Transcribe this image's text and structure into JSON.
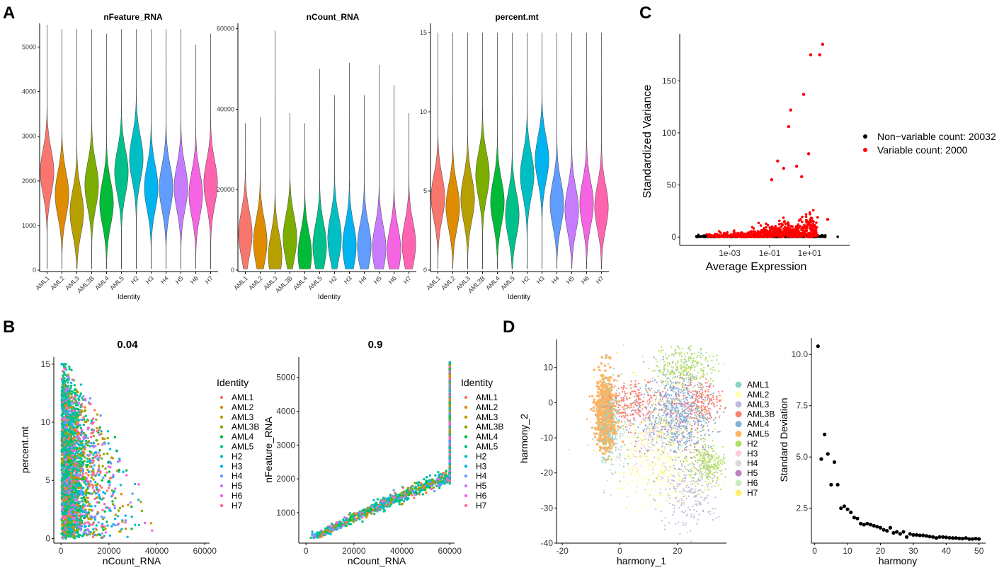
{
  "panels": {
    "A": "A",
    "B": "B",
    "C": "C",
    "D": "D"
  },
  "chart_data": [
    {
      "id": "violin-nFeature",
      "type": "violin",
      "title": "nFeature_RNA",
      "xlabel": "Identity",
      "ylabel": "",
      "categories": [
        "AML1",
        "AML2",
        "AML3",
        "AML3B",
        "AML4",
        "AML5",
        "H2",
        "H3",
        "H4",
        "H5",
        "H6",
        "H7"
      ],
      "colors": [
        "#F8766D",
        "#DE8C00",
        "#B79F00",
        "#7CAE00",
        "#00BA38",
        "#00C08B",
        "#00BFC4",
        "#00B4F0",
        "#619CFF",
        "#C77CFF",
        "#F564E3",
        "#FF64B0"
      ],
      "medians": [
        2200,
        1700,
        1300,
        1900,
        1500,
        2200,
        2500,
        1850,
        1850,
        1850,
        1700,
        1950
      ],
      "max": [
        5500,
        5400,
        5400,
        5400,
        5300,
        5400,
        5400,
        5400,
        5400,
        5400,
        5050,
        5300
      ],
      "ylim": [
        0,
        5500
      ],
      "yticks": [
        0,
        1000,
        2000,
        3000,
        4000,
        5000
      ]
    },
    {
      "id": "violin-nCount",
      "type": "violin",
      "title": "nCount_RNA",
      "xlabel": "Identity",
      "ylabel": "",
      "categories": [
        "AML1",
        "AML2",
        "AML3",
        "AML3B",
        "AML4",
        "AML5",
        "H2",
        "H3",
        "H4",
        "H5",
        "H6",
        "H7"
      ],
      "colors": [
        "#F8766D",
        "#DE8C00",
        "#B79F00",
        "#7CAE00",
        "#00BA38",
        "#00C08B",
        "#00BFC4",
        "#00B4F0",
        "#619CFF",
        "#C77CFF",
        "#F564E3",
        "#FF64B0"
      ],
      "medians": [
        9000,
        7000,
        3500,
        8000,
        4000,
        6000,
        8000,
        6000,
        6000,
        5500,
        5000,
        6500
      ],
      "max": [
        36500,
        38000,
        59500,
        39000,
        36500,
        50000,
        43500,
        51500,
        43500,
        51000,
        46000,
        39000
      ],
      "ylim": [
        0,
        61000
      ],
      "yticks": [
        0,
        20000,
        40000,
        60000
      ]
    },
    {
      "id": "violin-percentmt",
      "type": "violin",
      "title": "percent.mt",
      "xlabel": "Identity",
      "ylabel": "",
      "categories": [
        "AML1",
        "AML2",
        "AML3",
        "AML3B",
        "AML4",
        "AML5",
        "H2",
        "H3",
        "H4",
        "H5",
        "H6",
        "H7"
      ],
      "colors": [
        "#F8766D",
        "#DE8C00",
        "#B79F00",
        "#7CAE00",
        "#00BA38",
        "#00C08B",
        "#00BFC4",
        "#00B4F0",
        "#619CFF",
        "#C77CFF",
        "#F564E3",
        "#FF64B0"
      ],
      "medians": [
        4.6,
        4.0,
        4.5,
        6.0,
        4.3,
        3.5,
        6.0,
        7.0,
        4.2,
        3.8,
        4.2,
        4.0
      ],
      "max": [
        15,
        15,
        15,
        15,
        15,
        15,
        15,
        15,
        15,
        15,
        15,
        15
      ],
      "ylim": [
        0,
        15.5
      ],
      "yticks": [
        0,
        5,
        10,
        15
      ]
    },
    {
      "id": "scatter-B1",
      "type": "scatter",
      "title": "0.04",
      "xlabel": "nCount_RNA",
      "ylabel": "percent.mt",
      "xlim": [
        -3000,
        62000
      ],
      "ylim": [
        -0.4,
        15.6
      ],
      "xticks": [
        0,
        20000,
        40000,
        60000
      ],
      "yticks": [
        0,
        5,
        10,
        15
      ],
      "legend_title": "Identity",
      "legend": [
        "AML1",
        "AML2",
        "AML3",
        "AML3B",
        "AML4",
        "AML5",
        "H2",
        "H3",
        "H4",
        "H5",
        "H6",
        "H7"
      ],
      "colors": [
        "#F8766D",
        "#DE8C00",
        "#B79F00",
        "#7CAE00",
        "#00BA38",
        "#00C08B",
        "#00BFC4",
        "#00B4F0",
        "#619CFF",
        "#C77CFF",
        "#F564E3",
        "#FF64B0"
      ]
    },
    {
      "id": "scatter-B2",
      "type": "scatter",
      "title": "0.9",
      "xlabel": "nCount_RNA",
      "ylabel": "nFeature_RNA",
      "xlim": [
        -3000,
        62000
      ],
      "ylim": [
        100,
        5600
      ],
      "xticks": [
        0,
        20000,
        40000,
        60000
      ],
      "yticks": [
        1000,
        2000,
        3000,
        4000,
        5000
      ],
      "legend_title": "Identity",
      "legend": [
        "AML1",
        "AML2",
        "AML3",
        "AML3B",
        "AML4",
        "AML5",
        "H2",
        "H3",
        "H4",
        "H5",
        "H6",
        "H7"
      ],
      "colors": [
        "#F8766D",
        "#DE8C00",
        "#B79F00",
        "#7CAE00",
        "#00BA38",
        "#00C08B",
        "#00BFC4",
        "#00B4F0",
        "#619CFF",
        "#C77CFF",
        "#F564E3",
        "#FF64B0"
      ]
    },
    {
      "id": "scatter-C",
      "type": "scatter",
      "title": "",
      "xlabel": "Average Expression",
      "ylabel": "Standardized Variance",
      "xscale": "log10",
      "xlim": [
        -5.5,
        3
      ],
      "ylim": [
        -8,
        195
      ],
      "xticks": [
        -3,
        -1,
        1
      ],
      "xticklabels": [
        "1e-03",
        "1e-01",
        "1e+01"
      ],
      "yticks": [
        0,
        50,
        100,
        150
      ],
      "legend": [
        "Non−variable count: 20032",
        "Variable count: 2000"
      ],
      "colors": [
        "#000000",
        "#FF0000"
      ],
      "highlight_points": [
        {
          "log10x": 1.05,
          "y": 175
        },
        {
          "log10x": 1.5,
          "y": 175
        },
        {
          "log10x": 1.65,
          "y": 185
        },
        {
          "log10x": 0.7,
          "y": 137
        },
        {
          "log10x": 0.05,
          "y": 122
        },
        {
          "log10x": -0.05,
          "y": 106
        },
        {
          "log10x": 0.95,
          "y": 80
        },
        {
          "log10x": -0.6,
          "y": 73
        },
        {
          "log10x": -0.3,
          "y": 66
        },
        {
          "log10x": 0.35,
          "y": 68
        },
        {
          "log10x": 0.6,
          "y": 58
        },
        {
          "log10x": -0.9,
          "y": 55
        },
        {
          "log10x": 1.9,
          "y": 17
        }
      ]
    },
    {
      "id": "umap-D",
      "type": "scatter",
      "title": "",
      "xlabel": "harmony_1",
      "ylabel": "harmony_2",
      "xlim": [
        -22,
        37
      ],
      "ylim": [
        -40,
        18
      ],
      "xticks": [
        -20,
        0,
        20
      ],
      "yticks": [
        -40,
        -30,
        -20,
        -10,
        0,
        10
      ],
      "legend": [
        "AML1",
        "AML2",
        "AML3",
        "AML3B",
        "AML4",
        "AML5",
        "H2",
        "H3",
        "H4",
        "H5",
        "H6",
        "H7"
      ],
      "colors": [
        "#8DD3C7",
        "#FFFFB3",
        "#BEBADA",
        "#FB8072",
        "#80B1D3",
        "#FDB462",
        "#B3DE69",
        "#FCCDE5",
        "#D9D9D9",
        "#BC80BD",
        "#CCEBC5",
        "#FFED6F"
      ]
    },
    {
      "id": "elbow-D",
      "type": "scatter",
      "title": "",
      "xlabel": "harmony",
      "ylabel": "Standard Deviation",
      "xlim": [
        -1,
        52
      ],
      "ylim": [
        0.8,
        10.8
      ],
      "xticks": [
        0,
        10,
        20,
        30,
        40,
        50
      ],
      "yticks": [
        2.5,
        5.0,
        7.5,
        10.0
      ],
      "yticklabels": [
        "2.5",
        "5.0",
        "7.5",
        "10.0"
      ],
      "x": [
        1,
        2,
        3,
        4,
        5,
        6,
        7,
        8,
        9,
        10,
        11,
        12,
        13,
        14,
        15,
        16,
        17,
        18,
        19,
        20,
        21,
        22,
        23,
        24,
        25,
        26,
        27,
        28,
        29,
        30,
        31,
        32,
        33,
        34,
        35,
        36,
        37,
        38,
        39,
        40,
        41,
        42,
        43,
        44,
        45,
        46,
        47,
        48,
        49,
        50
      ],
      "values": [
        10.4,
        4.9,
        6.1,
        5.15,
        3.65,
        4.75,
        3.65,
        2.5,
        2.6,
        2.45,
        2.3,
        2.05,
        2.0,
        1.75,
        1.7,
        1.75,
        1.7,
        1.65,
        1.6,
        1.55,
        1.45,
        1.4,
        1.55,
        1.3,
        1.35,
        1.25,
        1.35,
        1.1,
        1.25,
        1.2,
        1.2,
        1.18,
        1.18,
        1.15,
        1.12,
        1.1,
        1.05,
        1.1,
        1.1,
        1.08,
        1.06,
        1.05,
        1.05,
        1.03,
        1.02,
        1.05,
        1.0,
        1.0,
        1.02,
        1.0
      ]
    }
  ]
}
